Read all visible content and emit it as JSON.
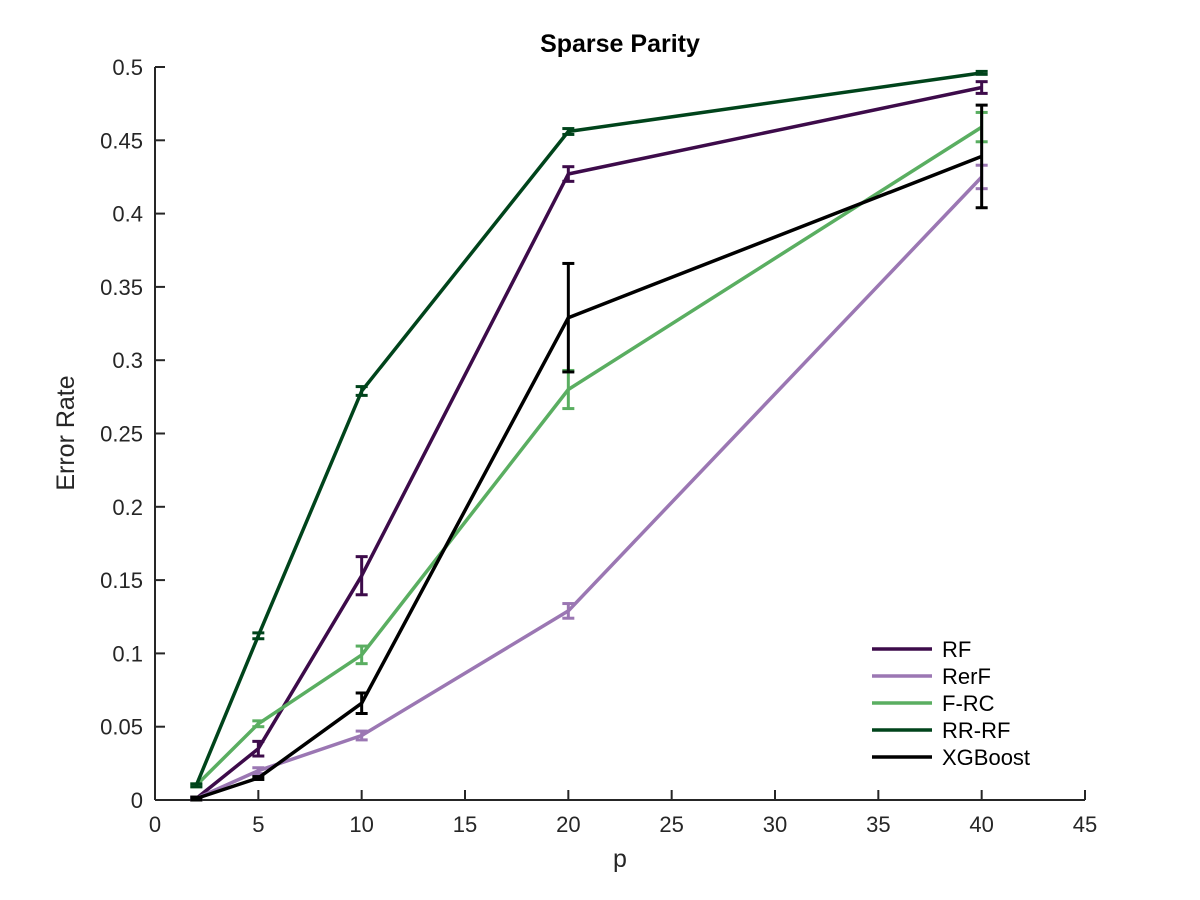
{
  "chart_data": {
    "type": "line",
    "title": "Sparse Parity",
    "xlabel": "p",
    "ylabel": "Error Rate",
    "xlim": [
      0,
      45
    ],
    "ylim": [
      0,
      0.5
    ],
    "xticks": [
      "0",
      "5",
      "10",
      "15",
      "20",
      "25",
      "30",
      "35",
      "40",
      "45"
    ],
    "yticks": [
      "0",
      "0.05",
      "0.1",
      "0.15",
      "0.2",
      "0.25",
      "0.3",
      "0.35",
      "0.4",
      "0.45",
      "0.5"
    ],
    "grid": false,
    "legend_position": "bottom-right",
    "x": [
      2,
      5,
      10,
      20,
      40
    ],
    "series": [
      {
        "name": "RF",
        "color": "#3d0b4a",
        "values": [
          0.001,
          0.035,
          0.153,
          0.427,
          0.486
        ],
        "errors": [
          0.001,
          0.005,
          0.013,
          0.005,
          0.004
        ]
      },
      {
        "name": "RerF",
        "color": "#9b77b3",
        "values": [
          0.001,
          0.02,
          0.044,
          0.129,
          0.425
        ],
        "errors": [
          0.001,
          0.002,
          0.003,
          0.005,
          0.008
        ]
      },
      {
        "name": "F-RC",
        "color": "#5aae61",
        "values": [
          0.01,
          0.052,
          0.099,
          0.28,
          0.459
        ],
        "errors": [
          0.001,
          0.002,
          0.006,
          0.013,
          0.01
        ]
      },
      {
        "name": "RR-RF",
        "color": "#00441b",
        "values": [
          0.01,
          0.112,
          0.279,
          0.456,
          0.496
        ],
        "errors": [
          0.001,
          0.002,
          0.003,
          0.002,
          0.001
        ]
      },
      {
        "name": "XGBoost",
        "color": "#000000",
        "values": [
          0.001,
          0.015,
          0.066,
          0.329,
          0.439
        ],
        "errors": [
          0.001,
          0.001,
          0.007,
          0.037,
          0.035
        ]
      }
    ]
  }
}
